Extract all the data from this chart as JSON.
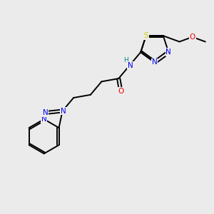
{
  "bg_color": "#ebebeb",
  "atom_colors": {
    "C": "#000000",
    "N": "#0000ee",
    "O": "#ee0000",
    "S": "#cccc00",
    "H": "#008080"
  },
  "bond_color": "#000000",
  "bond_width": 1.4,
  "dbo": 0.055
}
